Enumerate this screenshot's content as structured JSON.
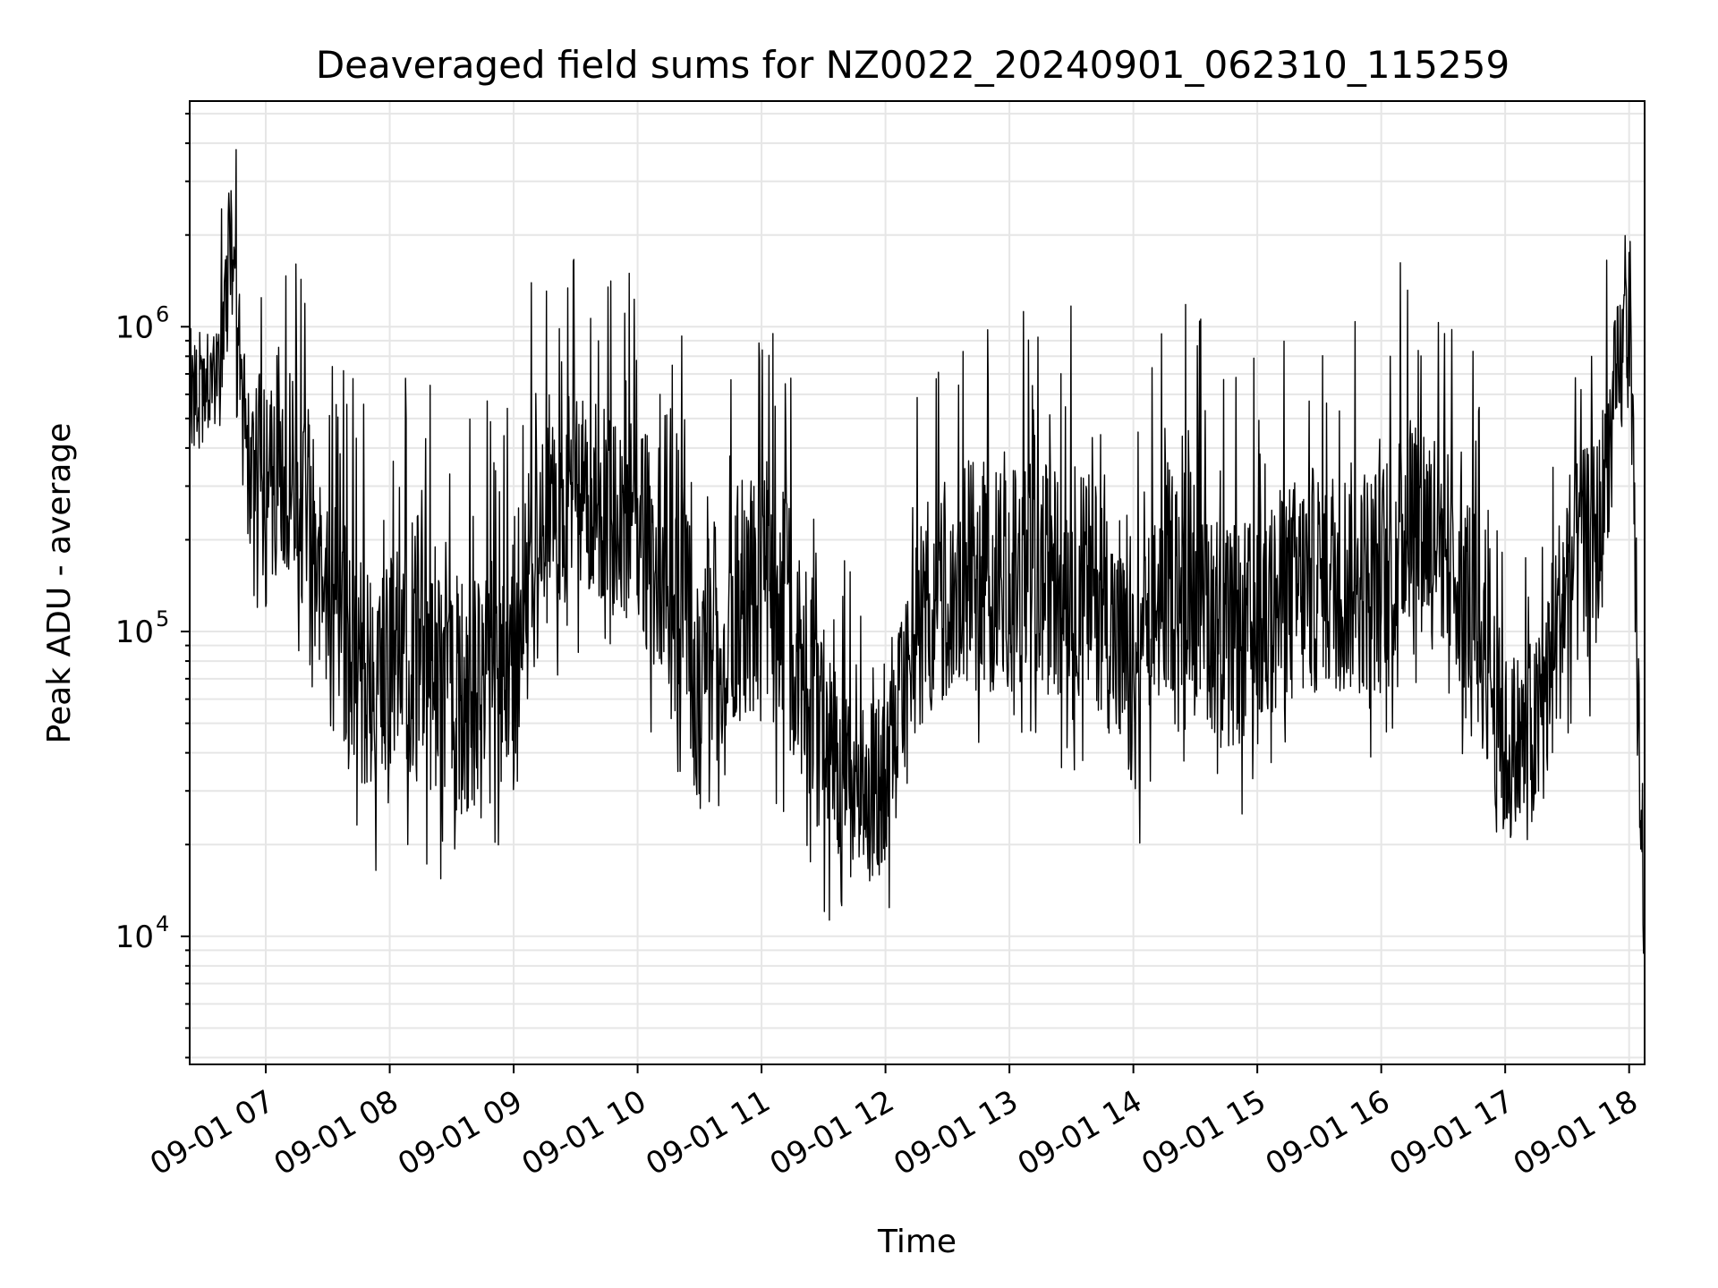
{
  "chart_data": {
    "type": "line",
    "title": "Deaveraged field sums for NZ0022_20240901_062310_115259",
    "xlabel": "Time",
    "ylabel": "Peak ADU - average",
    "xlim": [
      "2024-09-01 06:23:10",
      "2024-09-01 18:07:30"
    ],
    "ylim": [
      3800,
      5500000
    ],
    "yscale": "log",
    "grid": true,
    "line_color": "#000000",
    "grid_color": "#e6e6e6",
    "x_tick_labels": [
      "09-01 07",
      "09-01 08",
      "09-01 09",
      "09-01 10",
      "09-01 11",
      "09-01 12",
      "09-01 13",
      "09-01 14",
      "09-01 15",
      "09-01 16",
      "09-01 17",
      "09-01 18"
    ],
    "y_tick_labels": [
      {
        "base": "10",
        "exp": "4"
      },
      {
        "base": "10",
        "exp": "5"
      },
      {
        "base": "10",
        "exp": "6"
      }
    ],
    "series": [
      {
        "x": [
          "2024-09-01 06:23:10",
          "2024-09-01 06:30:00",
          "2024-09-01 06:38:00",
          "2024-09-01 06:43:00",
          "2024-09-01 06:48:00",
          "2024-09-01 06:52:00",
          "2024-09-01 06:56:00",
          "2024-09-01 07:00:00",
          "2024-09-01 07:10:00",
          "2024-09-01 07:20:00",
          "2024-09-01 07:30:00",
          "2024-09-01 07:45:00",
          "2024-09-01 08:00:00",
          "2024-09-01 08:15:00",
          "2024-09-01 08:30:00",
          "2024-09-01 08:45:00",
          "2024-09-01 09:00:00",
          "2024-09-01 09:15:00",
          "2024-09-01 09:30:00",
          "2024-09-01 09:45:00",
          "2024-09-01 10:00:00",
          "2024-09-01 10:15:00",
          "2024-09-01 10:30:00",
          "2024-09-01 10:45:00",
          "2024-09-01 11:00:00",
          "2024-09-01 11:15:00",
          "2024-09-01 11:30:00",
          "2024-09-01 11:45:00",
          "2024-09-01 12:00:00",
          "2024-09-01 12:15:00",
          "2024-09-01 12:30:00",
          "2024-09-01 12:45:00",
          "2024-09-01 13:00:00",
          "2024-09-01 13:15:00",
          "2024-09-01 13:30:00",
          "2024-09-01 13:45:00",
          "2024-09-01 14:00:00",
          "2024-09-01 14:15:00",
          "2024-09-01 14:30:00",
          "2024-09-01 14:45:00",
          "2024-09-01 15:00:00",
          "2024-09-01 15:15:00",
          "2024-09-01 15:30:00",
          "2024-09-01 15:45:00",
          "2024-09-01 16:00:00",
          "2024-09-01 16:15:00",
          "2024-09-01 16:30:00",
          "2024-09-01 16:45:00",
          "2024-09-01 17:00:00",
          "2024-09-01 17:15:00",
          "2024-09-01 17:30:00",
          "2024-09-01 17:45:00",
          "2024-09-01 17:55:00",
          "2024-09-01 18:00:00",
          "2024-09-01 18:03:00",
          "2024-09-01 18:05:00",
          "2024-09-01 18:07:00"
        ],
        "values": [
          650000,
          700000,
          750000,
          2000000,
          600000,
          400000,
          350000,
          300000,
          350000,
          250000,
          120000,
          80000,
          70000,
          90000,
          60000,
          60000,
          90000,
          250000,
          300000,
          250000,
          220000,
          150000,
          70000,
          120000,
          150000,
          100000,
          40000,
          30000,
          30000,
          100000,
          150000,
          150000,
          150000,
          150000,
          150000,
          130000,
          60000,
          150000,
          150000,
          90000,
          100000,
          130000,
          150000,
          150000,
          150000,
          250000,
          200000,
          120000,
          40000,
          45000,
          150000,
          200000,
          700000,
          1000000,
          150000,
          40000,
          8000
        ],
        "spike_amplitude_log10": [
          0.25,
          0.3,
          0.4,
          0.5,
          0.6,
          0.6,
          0.6,
          0.6,
          0.6,
          0.65,
          0.7,
          0.7,
          0.75,
          0.8,
          0.75,
          0.75,
          0.75,
          0.7,
          0.6,
          0.6,
          0.65,
          0.7,
          0.75,
          0.75,
          0.75,
          0.75,
          0.6,
          0.55,
          0.55,
          0.65,
          0.7,
          0.7,
          0.65,
          0.7,
          0.7,
          0.7,
          0.65,
          0.7,
          0.7,
          0.7,
          0.7,
          0.7,
          0.7,
          0.7,
          0.7,
          0.7,
          0.65,
          0.65,
          0.6,
          0.6,
          0.65,
          0.65,
          0.5,
          0.5,
          0.6,
          0.5,
          0.3
        ]
      }
    ]
  }
}
